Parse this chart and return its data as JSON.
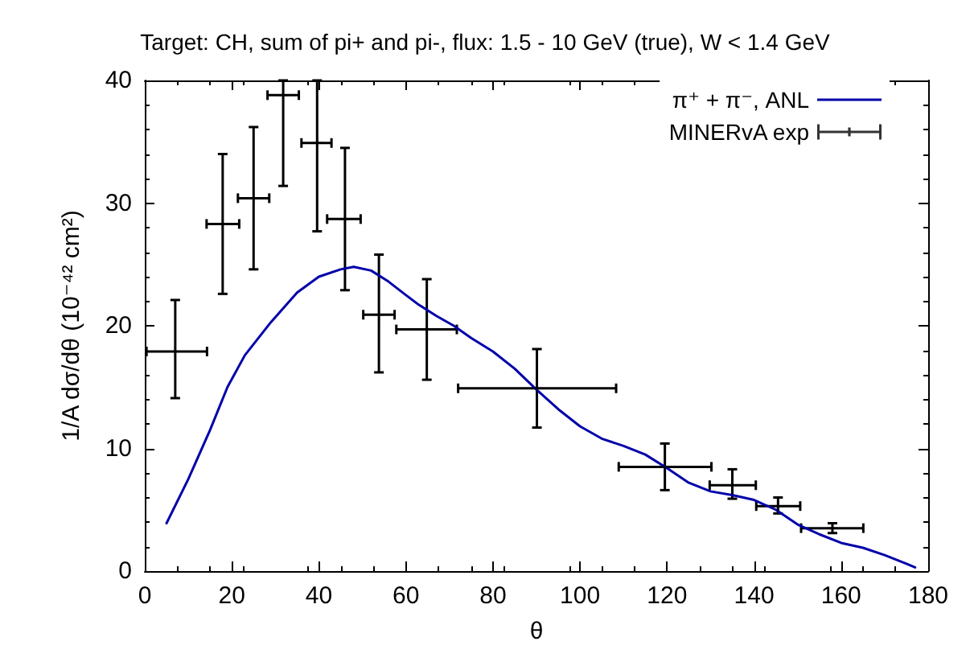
{
  "chart_data": {
    "type": "line",
    "title": "Target: CH, sum of pi+ and pi-, flux: 1.5 - 10 GeV (true), W < 1.4 GeV",
    "xlabel": "θ",
    "ylabel": "1/A dσ/dθ (10⁻⁴² cm²)",
    "xlim": [
      0,
      180
    ],
    "xticks": [
      0,
      20,
      40,
      60,
      80,
      100,
      120,
      140,
      160,
      180
    ],
    "ylim": [
      0,
      40
    ],
    "yticks": [
      0,
      10,
      20,
      30,
      40
    ],
    "grid": false,
    "legend": "top right",
    "series": [
      {
        "name": "π⁺ + π⁻, ANL",
        "color": "#0000aa",
        "marker": "none",
        "line_style": "solid",
        "x": [
          5,
          10,
          15,
          19,
          23,
          29,
          35,
          40,
          45,
          48,
          52,
          56,
          60,
          63,
          67,
          71,
          75,
          80,
          85,
          90,
          95,
          100,
          105,
          110,
          115,
          120,
          125,
          130,
          135,
          140,
          145,
          150,
          155,
          160,
          165,
          170,
          175,
          177
        ],
        "values": [
          3.9,
          7.5,
          11.5,
          15,
          17.6,
          20.3,
          22.7,
          24,
          24.6,
          24.8,
          24.5,
          23.6,
          22.5,
          21.7,
          20.8,
          20,
          19,
          17.9,
          16.5,
          14.8,
          13.2,
          11.8,
          10.8,
          10.2,
          9.5,
          8.4,
          7.2,
          6.5,
          6.2,
          5.8,
          5.0,
          3.8,
          3.0,
          2.3,
          1.9,
          1.3,
          0.6,
          0.3
        ]
      },
      {
        "name": "MINERvA exp",
        "type": "scatter",
        "color": "#000000",
        "marker": "cross",
        "x": [
          7,
          17.9,
          25,
          31.8,
          39.6,
          46,
          53.8,
          64.8,
          90.1,
          119.5,
          135,
          145.5,
          158
        ],
        "values": [
          17.9,
          28.3,
          30.4,
          38.8,
          34.9,
          28.7,
          20.9,
          19.7,
          14.9,
          8.5,
          7.0,
          5.3,
          3.5
        ],
        "errors": [
          [
            14.1,
            22.1
          ],
          [
            22.6,
            34.0
          ],
          [
            24.6,
            36.2
          ],
          [
            31.4,
            40
          ],
          [
            27.7,
            40
          ],
          [
            22.9,
            34.5
          ],
          [
            16.2,
            25.8
          ],
          [
            15.6,
            23.8
          ],
          [
            11.7,
            18.1
          ],
          [
            6.6,
            10.4
          ],
          [
            5.9,
            8.3
          ],
          [
            4.7,
            6.0
          ],
          [
            3.1,
            3.9
          ]
        ],
        "xerrors": [
          [
            0.4,
            14.3
          ],
          [
            14.2,
            21.7
          ],
          [
            21.4,
            28.6
          ],
          [
            28.2,
            35.4
          ],
          [
            36,
            42.9
          ],
          [
            41.9,
            49.6
          ],
          [
            50.2,
            57.4
          ],
          [
            57.8,
            71.7
          ],
          [
            72,
            108.3
          ],
          [
            108.9,
            130.2
          ],
          [
            129.8,
            140.4
          ],
          [
            140.5,
            150.6
          ],
          [
            150.8,
            165.1
          ]
        ]
      }
    ]
  }
}
